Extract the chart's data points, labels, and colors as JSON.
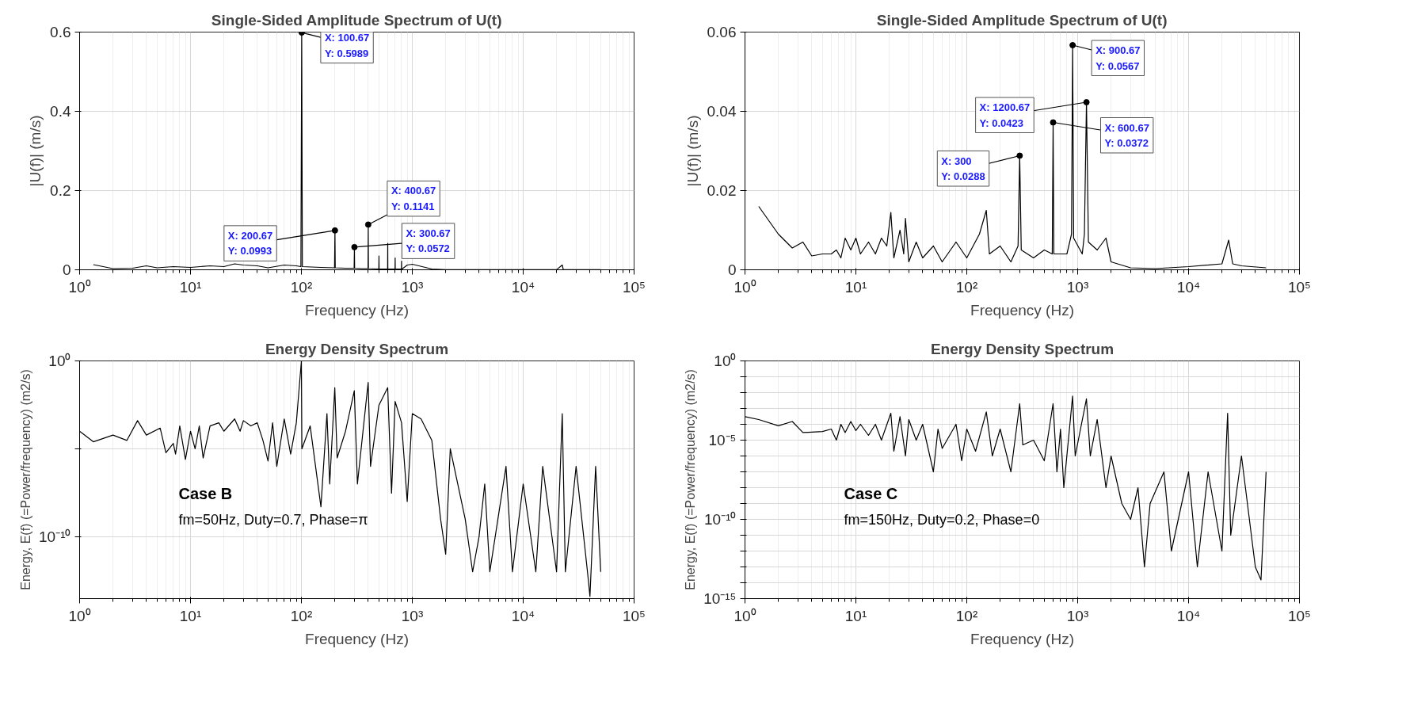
{
  "chart_data": [
    {
      "type": "line",
      "title": "Single-Sided Amplitude Spectrum of U(t)",
      "xlabel": "Frequency (Hz)",
      "ylabel": "|U(f)| (m/s)",
      "color": "#000000",
      "log": "x",
      "grid": true,
      "xlim": [
        1,
        100000
      ],
      "xticks": [
        {
          "value": 1,
          "label": "10⁰"
        },
        {
          "value": 10,
          "label": "10¹"
        },
        {
          "value": 100,
          "label": "10²"
        },
        {
          "value": 1000,
          "label": "10³"
        },
        {
          "value": 10000,
          "label": "10⁴"
        },
        {
          "value": 100000,
          "label": "10⁵"
        }
      ],
      "ylim": [
        0,
        0.6
      ],
      "yticks": [
        0,
        0.2,
        0.4,
        0.6
      ],
      "x": [
        1.33,
        2,
        3,
        4,
        5,
        7,
        10,
        15,
        20,
        25,
        30,
        40,
        50,
        70,
        90,
        99,
        100.67,
        102,
        150,
        199,
        200.67,
        202,
        250,
        299,
        300.67,
        302,
        350,
        399,
        400.67,
        402,
        499,
        500.67,
        502,
        599,
        600.67,
        602,
        699,
        700.67,
        702,
        799,
        800.67,
        802,
        900.67,
        1000.67,
        1500,
        2000,
        5000,
        20000,
        22500,
        23000,
        50000
      ],
      "values": [
        0.013,
        0.003,
        0.004,
        0.01,
        0.005,
        0.008,
        0.006,
        0.01,
        0.008,
        0.015,
        0.012,
        0.01,
        0.005,
        0.012,
        0.01,
        0.008,
        0.5989,
        0.008,
        0.006,
        0.005,
        0.0993,
        0.005,
        0.004,
        0.004,
        0.0572,
        0.004,
        0.003,
        0.003,
        0.1141,
        0.003,
        0.002,
        0.035,
        0.002,
        0.002,
        0.067,
        0.002,
        0.002,
        0.03,
        0.002,
        0.002,
        0.022,
        0.001,
        0.012,
        0.014,
        0.002,
        0.0005,
        0.0003,
        0.0003,
        0.012,
        0.0003,
        0.0002
      ],
      "annotations": [
        {
          "text": "X: 100.67\nY: 0.5989",
          "x": 100.67,
          "y": 0.5989
        },
        {
          "text": "X: 200.67\nY: 0.0993",
          "x": 200.67,
          "y": 0.0993
        },
        {
          "text": "X: 300.67\nY: 0.0572",
          "x": 300.67,
          "y": 0.0572
        },
        {
          "text": "X: 400.67\nY: 0.1141",
          "x": 400.67,
          "y": 0.1141
        }
      ]
    },
    {
      "type": "line",
      "title": "Single-Sided Amplitude Spectrum of U(t)",
      "xlabel": "Frequency (Hz)",
      "ylabel": "|U(f)| (m/s)",
      "color": "#000000",
      "log": "x",
      "grid": true,
      "xlim": [
        1,
        100000
      ],
      "xticks": [
        {
          "value": 1,
          "label": "10⁰"
        },
        {
          "value": 10,
          "label": "10¹"
        },
        {
          "value": 100,
          "label": "10²"
        },
        {
          "value": 1000,
          "label": "10³"
        },
        {
          "value": 10000,
          "label": "10⁴"
        },
        {
          "value": 100000,
          "label": "10⁵"
        }
      ],
      "ylim": [
        0,
        0.06
      ],
      "yticks": [
        0,
        0.02,
        0.04,
        0.06
      ],
      "x": [
        1.33,
        2,
        2.67,
        3.33,
        4,
        5,
        6,
        6.67,
        7.33,
        8,
        9,
        10,
        11,
        13,
        15,
        17,
        19,
        20.67,
        22,
        25,
        27,
        28,
        30,
        35,
        40,
        50,
        60,
        80,
        100,
        130,
        150,
        160,
        200,
        250,
        290,
        300,
        310,
        400,
        500,
        590,
        600.67,
        610,
        800,
        880,
        900.67,
        920,
        1100,
        1150,
        1200.67,
        1250,
        1500,
        1800,
        2000,
        3000,
        5000,
        10000,
        20000,
        23000,
        25000,
        30000,
        50000
      ],
      "values": [
        0.016,
        0.009,
        0.0055,
        0.007,
        0.0035,
        0.004,
        0.004,
        0.005,
        0.003,
        0.008,
        0.005,
        0.008,
        0.004,
        0.007,
        0.004,
        0.008,
        0.006,
        0.0145,
        0.003,
        0.01,
        0.004,
        0.013,
        0.002,
        0.007,
        0.003,
        0.006,
        0.002,
        0.007,
        0.003,
        0.009,
        0.015,
        0.004,
        0.006,
        0.002,
        0.006,
        0.0288,
        0.005,
        0.003,
        0.005,
        0.004,
        0.0372,
        0.004,
        0.004,
        0.009,
        0.0567,
        0.008,
        0.004,
        0.009,
        0.0423,
        0.007,
        0.005,
        0.008,
        0.002,
        0.0005,
        0.0003,
        0.0008,
        0.0015,
        0.0075,
        0.0015,
        0.001,
        0.0005
      ],
      "annotations": [
        {
          "text": "X: 300\nY: 0.0288",
          "x": 300,
          "y": 0.0288
        },
        {
          "text": "X: 600.67\nY: 0.0372",
          "x": 600.67,
          "y": 0.0372
        },
        {
          "text": "X: 900.67\nY: 0.0567",
          "x": 900.67,
          "y": 0.0567
        },
        {
          "text": "X: 1200.67\nY: 0.0423",
          "x": 1200.67,
          "y": 0.0423
        }
      ]
    },
    {
      "type": "line",
      "title": "Energy Density Spectrum",
      "xlabel": "Frequency (Hz)",
      "ylabel": "Energy, E(f) (=Power/frequency) (m2/s)",
      "color": "#000000",
      "log": "xy",
      "grid": true,
      "xlim": [
        1,
        100000
      ],
      "xticks": [
        {
          "value": 1,
          "label": "10⁰"
        },
        {
          "value": 10,
          "label": "10¹"
        },
        {
          "value": 100,
          "label": "10²"
        },
        {
          "value": 1000,
          "label": "10³"
        },
        {
          "value": 10000,
          "label": "10⁴"
        },
        {
          "value": 100000,
          "label": "10⁵"
        }
      ],
      "ylim": [
        3e-14,
        1
      ],
      "yticks": [
        {
          "value": 1,
          "label": "10⁰"
        },
        {
          "value": 1e-05,
          "label": null
        },
        {
          "value": 1e-10,
          "label": "10⁻¹⁰"
        }
      ],
      "x": [
        1,
        1.33,
        2,
        2.67,
        3.33,
        4,
        5.33,
        6,
        7,
        7.33,
        8,
        9,
        10,
        11,
        12,
        13,
        15,
        18,
        20,
        25,
        28,
        30,
        35,
        40,
        45,
        50,
        55,
        60,
        70,
        80,
        90,
        100,
        101,
        120,
        150,
        170,
        180,
        200,
        210,
        250,
        300,
        320,
        400,
        420,
        500,
        600,
        650,
        700,
        800,
        900,
        1000,
        1200,
        1500,
        1800,
        2000,
        2200,
        3000,
        3500,
        4000,
        4500,
        5000,
        7000,
        8000,
        10000,
        13000,
        15000,
        20000,
        22500,
        24000,
        30000,
        38000,
        40000,
        45000,
        50000
      ],
      "values": [
        0.0001,
        2.5e-05,
        6e-05,
        3e-05,
        0.0004,
        6e-05,
        0.00015,
        6e-06,
        2e-05,
        5e-06,
        0.0002,
        2.5e-06,
        0.0001,
        1e-05,
        0.0002,
        3e-06,
        0.0002,
        0.0003,
        0.0001,
        0.0005,
        0.0001,
        0.0004,
        0.0002,
        0.0003,
        3e-05,
        2e-06,
        0.0003,
        1e-06,
        0.0005,
        5e-06,
        0.0003,
        1,
        1e-05,
        0.0002,
        5e-09,
        0.001,
        1e-07,
        0.03,
        3e-06,
        0.0001,
        0.02,
        1e-07,
        0.06,
        1e-06,
        0.003,
        0.03,
        3e-08,
        0.005,
        0.0003,
        1e-08,
        0.001,
        0.0005,
        3e-05,
        1e-09,
        1e-11,
        1e-05,
        1e-09,
        1e-12,
        1e-10,
        1e-07,
        1e-12,
        1e-06,
        1e-12,
        1e-07,
        1e-12,
        1e-06,
        1e-12,
        0.001,
        1e-12,
        1e-06,
        1e-12,
        4e-14,
        1e-06,
        1e-12
      ],
      "annotations": [
        "Case B",
        "fm=50Hz, Duty=0.7, Phase=π"
      ]
    },
    {
      "type": "line",
      "title": "Energy Density Spectrum",
      "xlabel": "Frequency (Hz)",
      "ylabel": "Energy, E(f) (=Power/frequency) (m2/s)",
      "color": "#000000",
      "log": "xy",
      "grid": true,
      "xlim": [
        1,
        100000
      ],
      "xticks": [
        {
          "value": 1,
          "label": "10⁰"
        },
        {
          "value": 10,
          "label": "10¹"
        },
        {
          "value": 100,
          "label": "10²"
        },
        {
          "value": 1000,
          "label": "10³"
        },
        {
          "value": 10000,
          "label": "10⁴"
        },
        {
          "value": 100000,
          "label": "10⁵"
        }
      ],
      "ylim": [
        1e-15,
        1
      ],
      "yticks": [
        {
          "value": 1,
          "label": "10⁰"
        },
        {
          "value": 0.1,
          "label": null
        },
        {
          "value": 0.01,
          "label": null
        },
        {
          "value": 0.001,
          "label": null
        },
        {
          "value": 0.0001,
          "label": null
        },
        {
          "value": 1e-05,
          "label": "10⁻⁵"
        },
        {
          "value": 1e-06,
          "label": null
        },
        {
          "value": 1e-07,
          "label": null
        },
        {
          "value": 1e-08,
          "label": null
        },
        {
          "value": 1e-09,
          "label": null
        },
        {
          "value": 1e-10,
          "label": "10⁻¹⁰"
        },
        {
          "value": 1e-11,
          "label": null
        },
        {
          "value": 1e-12,
          "label": null
        },
        {
          "value": 1e-13,
          "label": null
        },
        {
          "value": 1e-14,
          "label": null
        },
        {
          "value": 1e-15,
          "label": "10⁻¹⁵"
        }
      ],
      "x": [
        1,
        1.33,
        2,
        2.67,
        3.33,
        5,
        6,
        6.67,
        7.33,
        8,
        9,
        10,
        11,
        13,
        15,
        17,
        20.67,
        22,
        25,
        28,
        30,
        35,
        40,
        50,
        55,
        60,
        80,
        90,
        100,
        120,
        150,
        170,
        200,
        250,
        300,
        320,
        400,
        500,
        600,
        650,
        700,
        750,
        900,
        950,
        1200,
        1300,
        1500,
        1800,
        2000,
        2500,
        3000,
        3500,
        4000,
        4500,
        6000,
        7000,
        10000,
        12000,
        15000,
        20000,
        22500,
        24000,
        30000,
        40000,
        45000,
        50000
      ],
      "values": [
        0.0003,
        0.0002,
        8e-05,
        0.00015,
        3e-05,
        3.5e-05,
        5e-05,
        1e-05,
        0.0001,
        3e-05,
        0.00015,
        4e-05,
        0.0001,
        2e-05,
        0.0001,
        1e-05,
        0.0005,
        2e-06,
        0.0003,
        1e-06,
        0.0002,
        1e-05,
        0.0001,
        1e-07,
        5e-05,
        3e-06,
        0.0001,
        5e-07,
        5e-05,
        2e-06,
        0.0006,
        1e-06,
        5e-05,
        1e-07,
        0.002,
        5e-06,
        1e-05,
        5e-07,
        0.002,
        1e-07,
        5e-05,
        1e-08,
        0.006,
        1e-06,
        0.004,
        1e-06,
        0.0002,
        1e-08,
        1e-06,
        1e-09,
        1e-10,
        1e-08,
        1e-13,
        1e-09,
        1e-07,
        1e-12,
        1e-07,
        1e-13,
        1e-07,
        1e-12,
        0.0005,
        1e-11,
        1e-06,
        1e-13,
        1.5e-14,
        1e-07
      ],
      "annotations": [
        "Case C",
        "fm=150Hz, Duty=0.2, Phase=0"
      ]
    }
  ]
}
